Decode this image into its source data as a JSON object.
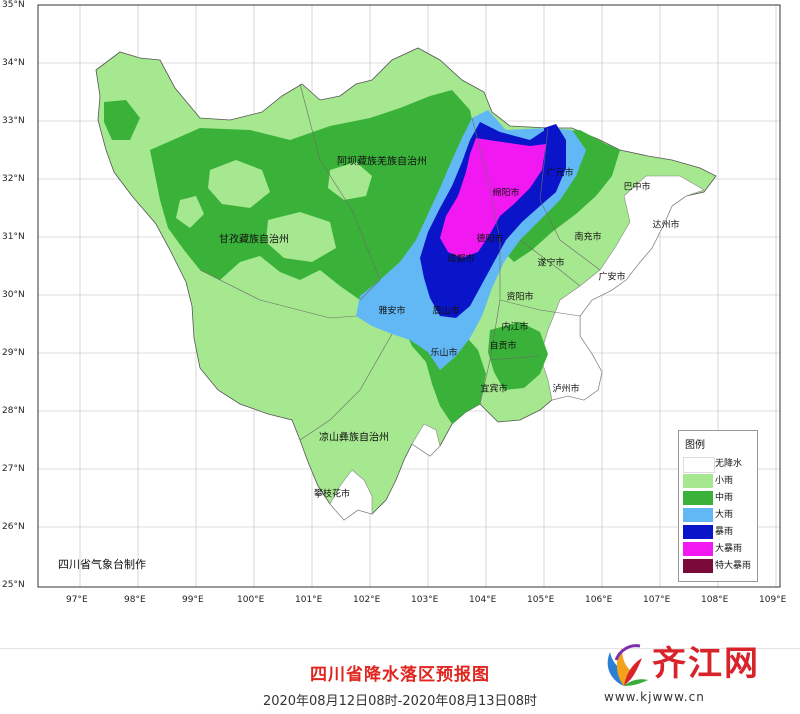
{
  "map": {
    "lat_labels": [
      "35°N",
      "34°N",
      "33°N",
      "32°N",
      "31°N",
      "30°N",
      "29°N",
      "28°N",
      "27°N",
      "26°N",
      "25°N"
    ],
    "lon_labels": [
      "97°E",
      "98°E",
      "99°E",
      "100°E",
      "101°E",
      "102°E",
      "103°E",
      "104°E",
      "105°E",
      "106°E",
      "107°E",
      "108°E",
      "109°E"
    ],
    "regions": {
      "aba": "阿坝藏族羌族自治州",
      "ganzi": "甘孜藏族自治州",
      "liangshan": "凉山彝族自治州"
    },
    "cities": {
      "mianyang": "绵阳市",
      "guangyuan": "广元市",
      "bazhong": "巴中市",
      "dazhou": "达州市",
      "nanchong": "南充市",
      "deyang": "德阳市",
      "chengdu": "成都市",
      "suining": "遂宁市",
      "guangan": "广安市",
      "ziyang": "资阳市",
      "yaan": "雅安市",
      "meishan": "眉山市",
      "neijiang": "内江市",
      "leshan": "乐山市",
      "zigong": "自贡市",
      "yibin": "宜宾市",
      "luzhou": "泸州市",
      "panzhihua": "攀枝花市"
    },
    "credit": "四川省气象台制作"
  },
  "legend": {
    "title": "图例",
    "items": [
      {
        "label": "无降水",
        "color": "#ffffff"
      },
      {
        "label": "小雨",
        "color": "#a6e88f"
      },
      {
        "label": "中雨",
        "color": "#3ab23a"
      },
      {
        "label": "大雨",
        "color": "#62b8f5"
      },
      {
        "label": "暴雨",
        "color": "#0a14c8"
      },
      {
        "label": "大暴雨",
        "color": "#f218f2"
      },
      {
        "label": "特大暴雨",
        "color": "#7a0a3a"
      }
    ]
  },
  "footer": {
    "title": "四川省降水落区预报图",
    "subtitle": "2020年08月12日08时-2020年08月13日08时"
  },
  "watermark": {
    "text": "齐江网",
    "url": "www.kjwww.cn"
  }
}
